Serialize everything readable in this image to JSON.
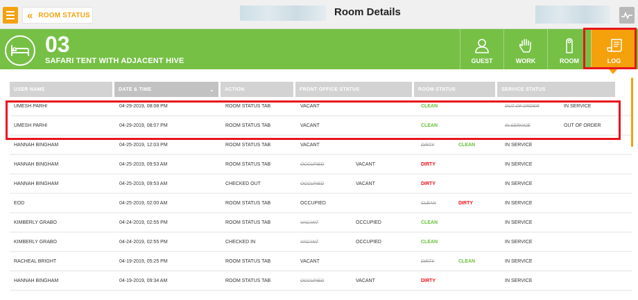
{
  "topbar": {
    "back_label": "ROOM STATUS",
    "title": "Room Details"
  },
  "room": {
    "number": "03",
    "name": "SAFARI TENT WITH ADJACENT HIVE"
  },
  "tabs": [
    {
      "label": "GUEST",
      "icon": "person-icon"
    },
    {
      "label": "WORK",
      "icon": "hand-icon"
    },
    {
      "label": "ROOM",
      "icon": "door-hanger-icon"
    },
    {
      "label": "LOG",
      "icon": "scroll-icon",
      "active": true
    }
  ],
  "colors": {
    "accent": "#f5a10c",
    "header_green": "#76c046",
    "clean": "#6abf3a",
    "dirty": "#e8141c",
    "highlight": "#e8141c"
  },
  "table": {
    "columns": [
      "USER NAME",
      "DATE & TIME",
      "ACTION",
      "FRONT OFFICE STATUS",
      "ROOM STATUS",
      "SERVICE STATUS"
    ],
    "sorted_column": "DATE & TIME",
    "rows": [
      {
        "user": "UMESH PARHI",
        "datetime": "04-29-2019, 08:08 PM",
        "action": "ROOM STATUS TAB",
        "fo_old": "VACANT",
        "fo_new": "",
        "rs_old": "CLEAN",
        "rs_new": "",
        "ss_old": "OUT OF ORDER",
        "ss_new": "IN SERVICE"
      },
      {
        "user": "UMESH PARHI",
        "datetime": "04-29-2019, 08:07 PM",
        "action": "ROOM STATUS TAB",
        "fo_old": "VACANT",
        "fo_new": "",
        "rs_old": "CLEAN",
        "rs_new": "",
        "ss_old": "IN SERVICE",
        "ss_new": "OUT OF ORDER"
      },
      {
        "user": "HANNAH BINGHAM",
        "datetime": "04-25-2019, 12:03 PM",
        "action": "ROOM STATUS TAB",
        "fo_old": "VACANT",
        "fo_new": "",
        "rs_old": "DIRTY",
        "rs_new": "CLEAN",
        "ss_old": "IN SERVICE",
        "ss_new": ""
      },
      {
        "user": "HANNAH BINGHAM",
        "datetime": "04-25-2019, 09:53 AM",
        "action": "ROOM STATUS TAB",
        "fo_old": "OCCUPIED",
        "fo_new": "VACANT",
        "rs_old": "DIRTY",
        "rs_new": "",
        "ss_old": "IN SERVICE",
        "ss_new": ""
      },
      {
        "user": "HANNAH BINGHAM",
        "datetime": "04-25-2019, 09:53 AM",
        "action": "CHECKED OUT",
        "fo_old": "OCCUPIED",
        "fo_new": "VACANT",
        "rs_old": "DIRTY",
        "rs_new": "",
        "ss_old": "IN SERVICE",
        "ss_new": ""
      },
      {
        "user": "EOD",
        "datetime": "04-25-2019, 02:00 AM",
        "action": "ROOM STATUS TAB",
        "fo_old": "OCCUPIED",
        "fo_new": "",
        "rs_old": "CLEAN",
        "rs_new": "DIRTY",
        "ss_old": "IN SERVICE",
        "ss_new": ""
      },
      {
        "user": "KIMBERLY GRABO",
        "datetime": "04-24-2019, 02:55 PM",
        "action": "ROOM STATUS TAB",
        "fo_old": "VACANT",
        "fo_new": "OCCUPIED",
        "rs_old": "CLEAN",
        "rs_new": "",
        "ss_old": "IN SERVICE",
        "ss_new": ""
      },
      {
        "user": "KIMBERLY GRABO",
        "datetime": "04-24-2019, 02:55 PM",
        "action": "CHECKED IN",
        "fo_old": "VACANT",
        "fo_new": "OCCUPIED",
        "rs_old": "CLEAN",
        "rs_new": "",
        "ss_old": "IN SERVICE",
        "ss_new": ""
      },
      {
        "user": "RACHEAL BRIGHT",
        "datetime": "04-19-2019, 05:25 PM",
        "action": "ROOM STATUS TAB",
        "fo_old": "VACANT",
        "fo_new": "",
        "rs_old": "DIRTY",
        "rs_new": "CLEAN",
        "ss_old": "IN SERVICE",
        "ss_new": ""
      },
      {
        "user": "HANNAH BINGHAM",
        "datetime": "04-19-2019, 09:34 AM",
        "action": "ROOM STATUS TAB",
        "fo_old": "OCCUPIED",
        "fo_new": "VACANT",
        "rs_old": "DIRTY",
        "rs_new": "",
        "ss_old": "IN SERVICE",
        "ss_new": ""
      }
    ]
  }
}
